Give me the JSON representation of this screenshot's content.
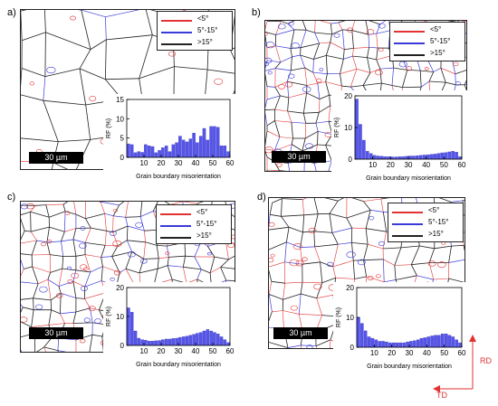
{
  "panels": [
    {
      "id": "a",
      "label": "a)",
      "legend": [
        "<5°",
        "5°-15°",
        ">15°"
      ],
      "scale_text": "30 µm"
    },
    {
      "id": "b",
      "label": "b)",
      "legend": [
        "<5°",
        "5°-15°",
        ">15°"
      ],
      "scale_text": "30 µm"
    },
    {
      "id": "c",
      "label": "c)",
      "legend": [
        "<5°",
        "5°-15°",
        ">15°"
      ],
      "scale_text": "30 µm"
    },
    {
      "id": "d",
      "label": "d)",
      "legend": [
        "<5°",
        "5°-15°",
        ">15°"
      ],
      "scale_text": "30 µm"
    }
  ],
  "colors": {
    "low": "#e23232",
    "mid": "#3a3ad8",
    "high": "#222222",
    "bar": "#5555ee"
  },
  "directions": {
    "rd": "RD",
    "td": "TD"
  },
  "chart_data": [
    {
      "type": "bar",
      "panel": "a",
      "xlabel": "Grain boundary misorientation",
      "ylabel": "RF (%)",
      "xlim": [
        0,
        60
      ],
      "ylim": [
        0,
        15
      ],
      "yticks": [
        0,
        5,
        10,
        15
      ],
      "xticks": [
        10,
        20,
        30,
        40,
        50,
        60
      ],
      "x": [
        1,
        3,
        5,
        7,
        9,
        11,
        13,
        15,
        17,
        19,
        21,
        23,
        25,
        27,
        29,
        31,
        33,
        35,
        37,
        39,
        41,
        43,
        45,
        47,
        49,
        51,
        53,
        55,
        57,
        59
      ],
      "values": [
        3.5,
        3.3,
        1.2,
        1.5,
        1.3,
        3.3,
        3.0,
        2.8,
        1.2,
        1.8,
        2.5,
        3.0,
        1.5,
        3.3,
        3.8,
        5.5,
        4.5,
        4.0,
        4.8,
        6.3,
        3.8,
        5.5,
        7.5,
        4.5,
        8.0,
        8.0,
        7.8,
        3.0,
        3.0,
        1.5
      ]
    },
    {
      "type": "bar",
      "panel": "b",
      "xlabel": "Grain boundary misorientation",
      "ylabel": "RF (%)",
      "xlim": [
        0,
        60
      ],
      "ylim": [
        0,
        20
      ],
      "yticks": [
        0,
        10,
        20
      ],
      "xticks": [
        10,
        20,
        30,
        40,
        50,
        60
      ],
      "x": [
        1,
        3,
        5,
        7,
        9,
        11,
        13,
        15,
        17,
        19,
        21,
        23,
        25,
        27,
        29,
        31,
        33,
        35,
        37,
        39,
        41,
        43,
        45,
        47,
        49,
        51,
        53,
        55,
        57,
        59
      ],
      "values": [
        19.0,
        11.0,
        6.0,
        2.5,
        1.8,
        1.2,
        1.0,
        0.9,
        0.8,
        0.8,
        0.7,
        0.7,
        0.8,
        0.8,
        0.9,
        1.0,
        1.0,
        1.1,
        1.2,
        1.3,
        1.4,
        1.5,
        1.6,
        1.8,
        2.0,
        2.1,
        2.3,
        2.5,
        2.2,
        0.8
      ]
    },
    {
      "type": "bar",
      "panel": "c",
      "xlabel": "Grain boundary misorientation",
      "ylabel": "RF (%)",
      "xlim": [
        0,
        60
      ],
      "ylim": [
        0,
        20
      ],
      "yticks": [
        0,
        10,
        20
      ],
      "xticks": [
        10,
        20,
        30,
        40,
        50,
        60
      ],
      "x": [
        1,
        3,
        5,
        7,
        9,
        11,
        13,
        15,
        17,
        19,
        21,
        23,
        25,
        27,
        29,
        31,
        33,
        35,
        37,
        39,
        41,
        43,
        45,
        47,
        49,
        51,
        53,
        55,
        57,
        59
      ],
      "values": [
        13.0,
        11.5,
        5.0,
        2.5,
        2.0,
        1.8,
        1.5,
        1.5,
        1.6,
        1.7,
        2.0,
        2.2,
        2.2,
        2.4,
        2.5,
        2.8,
        3.0,
        3.2,
        3.5,
        3.8,
        4.2,
        4.5,
        5.0,
        5.5,
        5.0,
        4.5,
        4.0,
        3.0,
        2.0,
        1.0
      ]
    },
    {
      "type": "bar",
      "panel": "d",
      "xlabel": "Grain boundary misorientation",
      "ylabel": "RF (%)",
      "xlim": [
        0,
        60
      ],
      "ylim": [
        0,
        20
      ],
      "yticks": [
        0,
        10,
        20
      ],
      "xticks": [
        10,
        20,
        30,
        40,
        50,
        60
      ],
      "x": [
        1,
        3,
        5,
        7,
        9,
        11,
        13,
        15,
        17,
        19,
        21,
        23,
        25,
        27,
        29,
        31,
        33,
        35,
        37,
        39,
        41,
        43,
        45,
        47,
        49,
        51,
        53,
        55,
        57,
        59
      ],
      "values": [
        10.0,
        8.0,
        5.5,
        3.5,
        3.0,
        2.5,
        2.0,
        2.0,
        1.8,
        1.5,
        1.5,
        1.5,
        1.5,
        1.5,
        1.8,
        2.0,
        2.2,
        2.5,
        3.0,
        3.2,
        3.5,
        3.8,
        4.0,
        4.0,
        4.5,
        4.5,
        4.0,
        3.5,
        2.5,
        1.5
      ]
    }
  ]
}
